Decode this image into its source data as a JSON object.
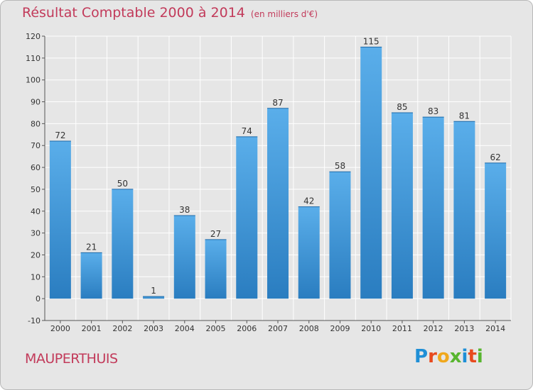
{
  "header": {
    "title": "Résultat Comptable 2000 à 2014",
    "unit": "(en milliers d'€)"
  },
  "footer": {
    "commune": "MAUPERTHUIS",
    "logo_text": "Proxiti",
    "logo_letter_colors": [
      "#1f8fd6",
      "#e84a1e",
      "#f0a81d",
      "#58b52f",
      "#1f8fd6",
      "#e84a1e",
      "#58b52f"
    ]
  },
  "colors": {
    "title": "#c23a5a",
    "bar_top": "#5aaeea",
    "bar_bottom": "#2a7dc0",
    "background": "#e6e6e6",
    "grid": "#ffffff"
  },
  "chart_data": {
    "type": "bar",
    "title": "Résultat Comptable 2000 à 2014",
    "subtitle": "(en milliers d'€)",
    "xlabel": "",
    "ylabel": "",
    "categories": [
      "2000",
      "2001",
      "2002",
      "2003",
      "2004",
      "2005",
      "2006",
      "2007",
      "2008",
      "2009",
      "2010",
      "2011",
      "2012",
      "2013",
      "2014"
    ],
    "values": [
      72,
      21,
      50,
      1,
      38,
      27,
      74,
      87,
      42,
      58,
      115,
      85,
      83,
      81,
      62
    ],
    "ylim": [
      -10,
      120
    ],
    "yticks": [
      -10,
      0,
      10,
      20,
      30,
      40,
      50,
      60,
      70,
      80,
      90,
      100,
      110,
      120
    ],
    "grid": true,
    "legend": "none"
  }
}
